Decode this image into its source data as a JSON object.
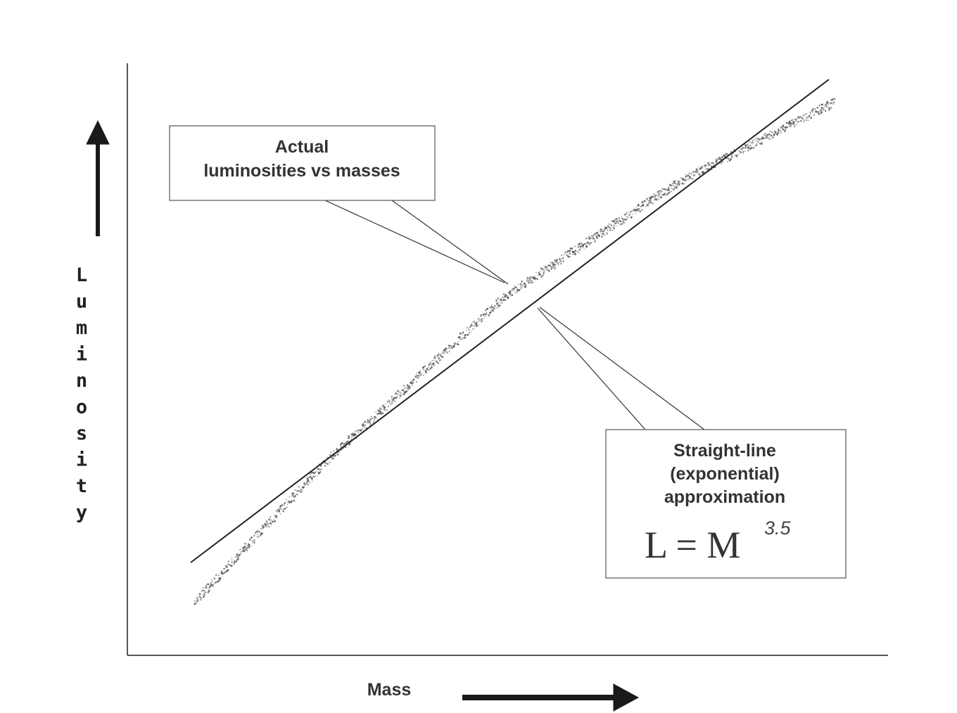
{
  "axes": {
    "x_label": "Mass",
    "y_label": "Luminosity"
  },
  "callouts": {
    "actual": {
      "line1": "Actual",
      "line2": "luminosities vs masses"
    },
    "fit": {
      "line1": "Straight-line",
      "line2": "(exponential)",
      "line3": "approximation",
      "equation_base": "L = M",
      "equation_exponent": "3.5"
    }
  },
  "colors": {
    "axis": "#555555",
    "line": "#222222",
    "scatter": "#555555",
    "arrow": "#1a1a1a"
  }
}
